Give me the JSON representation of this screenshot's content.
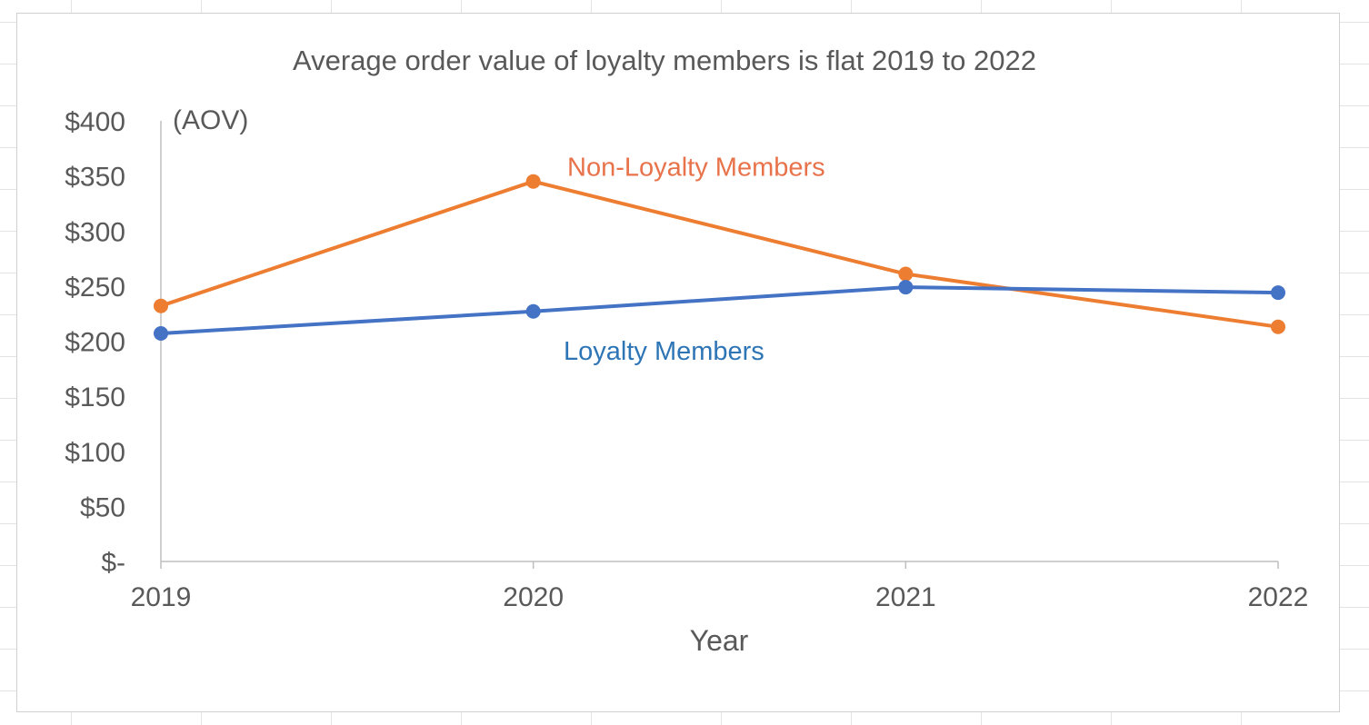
{
  "chart_data": {
    "type": "line",
    "title": "Average order value of loyalty members is flat 2019 to 2022",
    "xlabel": "Year",
    "ylabel": "",
    "y_unit_label": "(AOV)",
    "categories": [
      "2019",
      "2020",
      "2021",
      "2022"
    ],
    "y_tick_labels": [
      "$-",
      "$50",
      "$100",
      "$150",
      "$200",
      "$250",
      "$300",
      "$350",
      "$400"
    ],
    "y_ticks": [
      0,
      50,
      100,
      150,
      200,
      250,
      300,
      350,
      400
    ],
    "ylim": [
      0,
      400
    ],
    "grid": false,
    "legend": "none (direct series labels)",
    "series": [
      {
        "name": "Non-Loyalty Members",
        "color": "#ED7D31",
        "values": [
          232,
          345,
          261,
          213
        ]
      },
      {
        "name": "Loyalty Members",
        "color": "#4472C4",
        "values": [
          207,
          227,
          249,
          244
        ]
      }
    ],
    "series_label_colors": {
      "Non-Loyalty Members": "#E8724A",
      "Loyalty Members": "#2E75B6"
    }
  }
}
